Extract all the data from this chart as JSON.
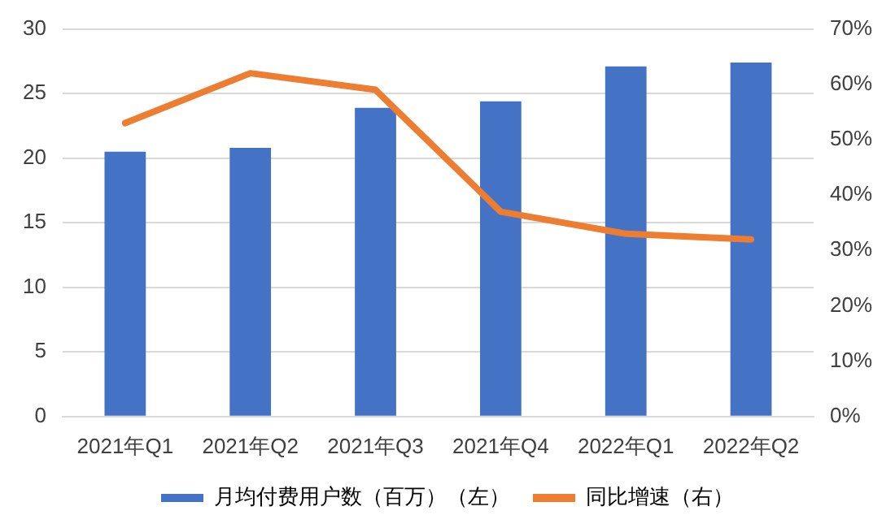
{
  "chart_data": {
    "type": "bar",
    "categories": [
      "2021年Q1",
      "2021年Q2",
      "2021年Q3",
      "2021年Q4",
      "2022年Q1",
      "2022年Q2"
    ],
    "series": [
      {
        "name": "月均付费用户数（百万）（左）",
        "color": "#4472c4",
        "values": [
          20.5,
          20.8,
          23.9,
          24.4,
          27.1,
          27.4
        ]
      },
      {
        "name": "同比增速（右）",
        "type": "line",
        "axis": "y2",
        "color": "#ed7d31",
        "values": [
          53,
          62,
          59,
          37,
          33,
          32
        ]
      }
    ],
    "ylim": [
      0,
      30
    ],
    "yticks": [
      0,
      5,
      10,
      15,
      20,
      25,
      30
    ],
    "y2lim": [
      0,
      70
    ],
    "y2ticks": [
      {
        "value": 0,
        "label": "0%"
      },
      {
        "value": 10,
        "label": "10%"
      },
      {
        "value": 20,
        "label": "20%"
      },
      {
        "value": 30,
        "label": "30%"
      },
      {
        "value": 40,
        "label": "40%"
      },
      {
        "value": 50,
        "label": "50%"
      },
      {
        "value": 60,
        "label": "60%"
      },
      {
        "value": 70,
        "label": "70%"
      }
    ],
    "grid": "y",
    "legend": "bottom",
    "marker": "none"
  }
}
